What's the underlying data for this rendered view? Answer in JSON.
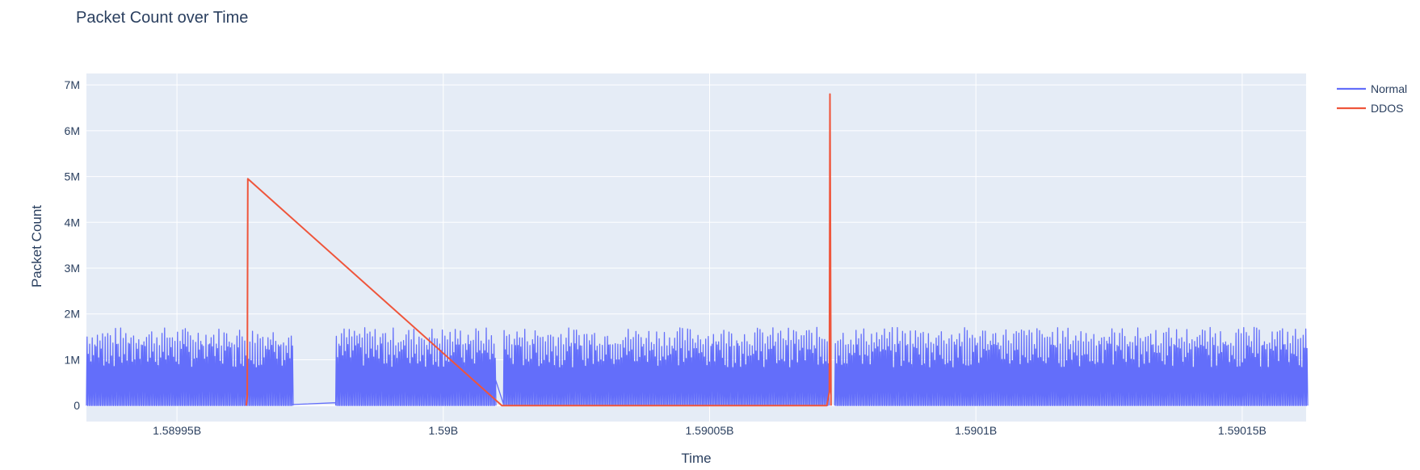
{
  "chart_data": {
    "type": "line",
    "title": "Packet Count over Time",
    "xlabel": "Time",
    "ylabel": "Packet Count",
    "xlim": [
      1589933000,
      1590162000
    ],
    "ylim": [
      -350000,
      7250000
    ],
    "x_ticks": [
      {
        "value": 1589950000,
        "label": "1.58995B"
      },
      {
        "value": 1590000000,
        "label": "1.59B"
      },
      {
        "value": 1590050000,
        "label": "1.59005B"
      },
      {
        "value": 1590100000,
        "label": "1.5901B"
      },
      {
        "value": 1590150000,
        "label": "1.59015B"
      }
    ],
    "y_ticks": [
      {
        "value": 0,
        "label": "0"
      },
      {
        "value": 1000000,
        "label": "1M"
      },
      {
        "value": 2000000,
        "label": "2M"
      },
      {
        "value": 3000000,
        "label": "3M"
      },
      {
        "value": 4000000,
        "label": "4M"
      },
      {
        "value": 5000000,
        "label": "5M"
      },
      {
        "value": 6000000,
        "label": "6M"
      },
      {
        "value": 7000000,
        "label": "7M"
      }
    ],
    "grid": true,
    "legend_position": "top-right",
    "series": [
      {
        "name": "Normal",
        "color": "#636efa",
        "pattern": "oscillating",
        "segments": [
          {
            "x_start": 1589933000,
            "x_end": 1589971500,
            "min": 0,
            "max": 1500000
          },
          {
            "x_start": 1589979800,
            "x_end": 1590009700,
            "min": 0,
            "max": 1500000
          },
          {
            "x_start": 1590011300,
            "x_end": 1590072000,
            "min": 0,
            "max": 1500000
          },
          {
            "x_start": 1590073500,
            "x_end": 1590162000,
            "min": 0,
            "max": 1500000
          }
        ],
        "connectors": [
          {
            "x": [
              1589971500,
              1589979800
            ],
            "y": [
              20000,
              60000
            ]
          },
          {
            "x": [
              1590009700,
              1590011300
            ],
            "y": [
              600000,
              30000
            ]
          }
        ]
      },
      {
        "name": "DDOS",
        "color": "#ef553b",
        "x": [
          1589963000,
          1589963200,
          1589963300,
          1590010500,
          1590011000,
          1590072000,
          1590072500,
          1590072600,
          1590072800
        ],
        "y": [
          0,
          200000,
          4950000,
          50000,
          0,
          0,
          300000,
          6800000,
          0
        ]
      }
    ]
  }
}
